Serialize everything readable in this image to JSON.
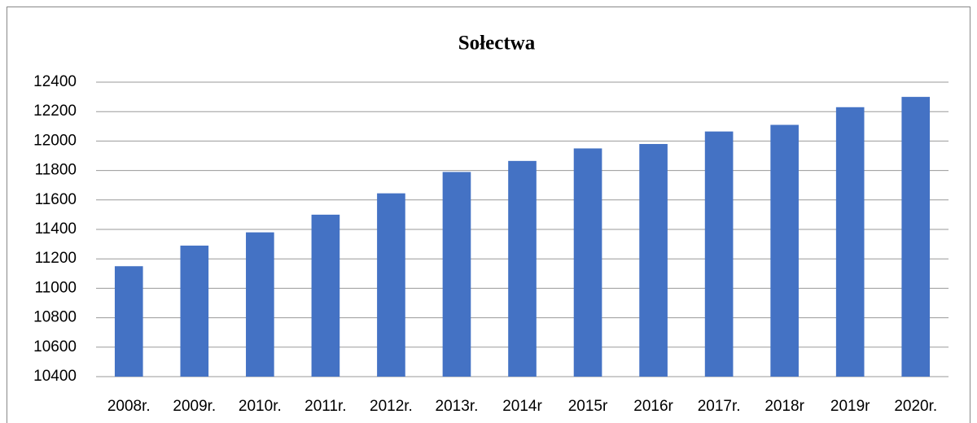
{
  "chart_data": {
    "type": "bar",
    "title": "Sołectwa",
    "categories": [
      "2008r.",
      "2009r.",
      "2010r.",
      "2011r.",
      "2012r.",
      "2013r.",
      "2014r",
      "2015r",
      "2016r",
      "2017r.",
      "2018r",
      "2019r",
      "2020r."
    ],
    "values": [
      11150,
      11290,
      11380,
      11500,
      11645,
      11790,
      11865,
      11950,
      11980,
      12065,
      12110,
      12230,
      12300
    ],
    "color": "#4472c4",
    "ylim": [
      10400,
      12400
    ],
    "yticks": [
      10400,
      10600,
      10800,
      11000,
      11200,
      11400,
      11600,
      11800,
      12000,
      12200,
      12400
    ],
    "grid": true
  }
}
